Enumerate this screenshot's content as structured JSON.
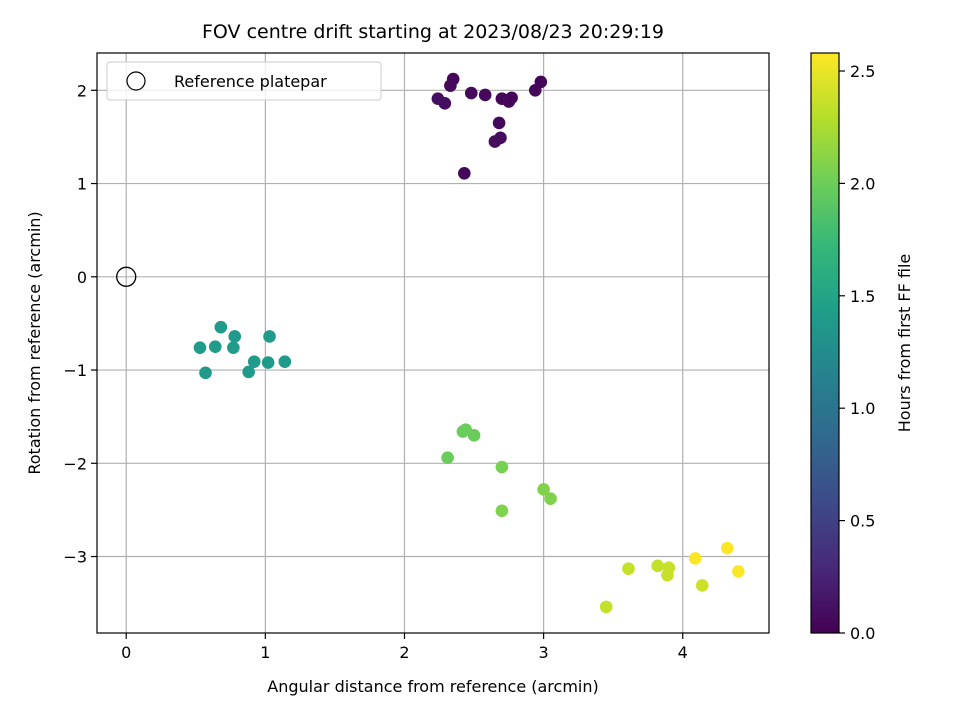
{
  "chart_data": {
    "type": "scatter",
    "title": "FOV centre drift starting at 2023/08/23 20:29:19",
    "xlabel": "Angular distance from reference (arcmin)",
    "ylabel": "Rotation from reference (arcmin)",
    "xlim": [
      -0.21,
      4.62
    ],
    "ylim": [
      -3.82,
      2.4
    ],
    "xticks": [
      0,
      1,
      2,
      3,
      4
    ],
    "yticks": [
      2,
      1,
      0,
      -1,
      -2,
      -3
    ],
    "grid": true,
    "legend": {
      "label": "Reference platepar",
      "placement": "top-left"
    },
    "reference_point": {
      "x": 0,
      "y": 0
    },
    "colorbar": {
      "label": "Hours from first FF file",
      "range": [
        0,
        2.58
      ],
      "ticks": [
        0.0,
        0.5,
        1.0,
        1.5,
        2.0,
        2.5
      ],
      "colormap": "viridis",
      "colormap_stops": [
        "#440154",
        "#482878",
        "#3e4989",
        "#31688e",
        "#26828e",
        "#1f9e89",
        "#35b779",
        "#6ece58",
        "#b5de2b",
        "#fde725"
      ]
    },
    "points": [
      {
        "x": 2.35,
        "y": 2.12,
        "t": 0.04
      },
      {
        "x": 2.33,
        "y": 2.05,
        "t": 0.06
      },
      {
        "x": 2.24,
        "y": 1.91,
        "t": 0.1
      },
      {
        "x": 2.29,
        "y": 1.86,
        "t": 0.09
      },
      {
        "x": 2.48,
        "y": 1.97,
        "t": 0.05
      },
      {
        "x": 2.58,
        "y": 1.95,
        "t": 0.05
      },
      {
        "x": 2.7,
        "y": 1.91,
        "t": 0.04
      },
      {
        "x": 2.75,
        "y": 1.88,
        "t": 0.05
      },
      {
        "x": 2.77,
        "y": 1.92,
        "t": 0.04
      },
      {
        "x": 2.94,
        "y": 2.0,
        "t": 0.04
      },
      {
        "x": 2.98,
        "y": 2.09,
        "t": 0.03
      },
      {
        "x": 2.68,
        "y": 1.65,
        "t": 0.06
      },
      {
        "x": 2.69,
        "y": 1.49,
        "t": 0.07
      },
      {
        "x": 2.65,
        "y": 1.45,
        "t": 0.08
      },
      {
        "x": 2.43,
        "y": 1.11,
        "t": 0.06
      },
      {
        "x": 0.68,
        "y": -0.54,
        "t": 1.39
      },
      {
        "x": 0.53,
        "y": -0.76,
        "t": 1.39
      },
      {
        "x": 0.64,
        "y": -0.75,
        "t": 1.39
      },
      {
        "x": 0.78,
        "y": -0.64,
        "t": 1.39
      },
      {
        "x": 0.77,
        "y": -0.76,
        "t": 1.39
      },
      {
        "x": 1.03,
        "y": -0.64,
        "t": 1.39
      },
      {
        "x": 0.92,
        "y": -0.91,
        "t": 1.39
      },
      {
        "x": 1.02,
        "y": -0.92,
        "t": 1.39
      },
      {
        "x": 1.14,
        "y": -0.91,
        "t": 1.39
      },
      {
        "x": 0.57,
        "y": -1.03,
        "t": 1.39
      },
      {
        "x": 0.88,
        "y": -1.02,
        "t": 1.39
      },
      {
        "x": 2.42,
        "y": -1.66,
        "t": 1.98
      },
      {
        "x": 2.44,
        "y": -1.64,
        "t": 1.98
      },
      {
        "x": 2.5,
        "y": -1.7,
        "t": 1.98
      },
      {
        "x": 2.31,
        "y": -1.94,
        "t": 1.98
      },
      {
        "x": 2.7,
        "y": -2.04,
        "t": 2.04
      },
      {
        "x": 3.0,
        "y": -2.28,
        "t": 2.08
      },
      {
        "x": 3.05,
        "y": -2.38,
        "t": 2.08
      },
      {
        "x": 2.7,
        "y": -2.51,
        "t": 2.08
      },
      {
        "x": 3.61,
        "y": -3.13,
        "t": 2.35
      },
      {
        "x": 3.82,
        "y": -3.1,
        "t": 2.35
      },
      {
        "x": 3.9,
        "y": -3.12,
        "t": 2.37
      },
      {
        "x": 3.89,
        "y": -3.2,
        "t": 2.37
      },
      {
        "x": 4.14,
        "y": -3.31,
        "t": 2.38
      },
      {
        "x": 3.45,
        "y": -3.54,
        "t": 2.35
      },
      {
        "x": 4.09,
        "y": -3.02,
        "t": 2.58
      },
      {
        "x": 4.32,
        "y": -2.91,
        "t": 2.58
      },
      {
        "x": 4.4,
        "y": -3.16,
        "t": 2.58
      }
    ]
  }
}
